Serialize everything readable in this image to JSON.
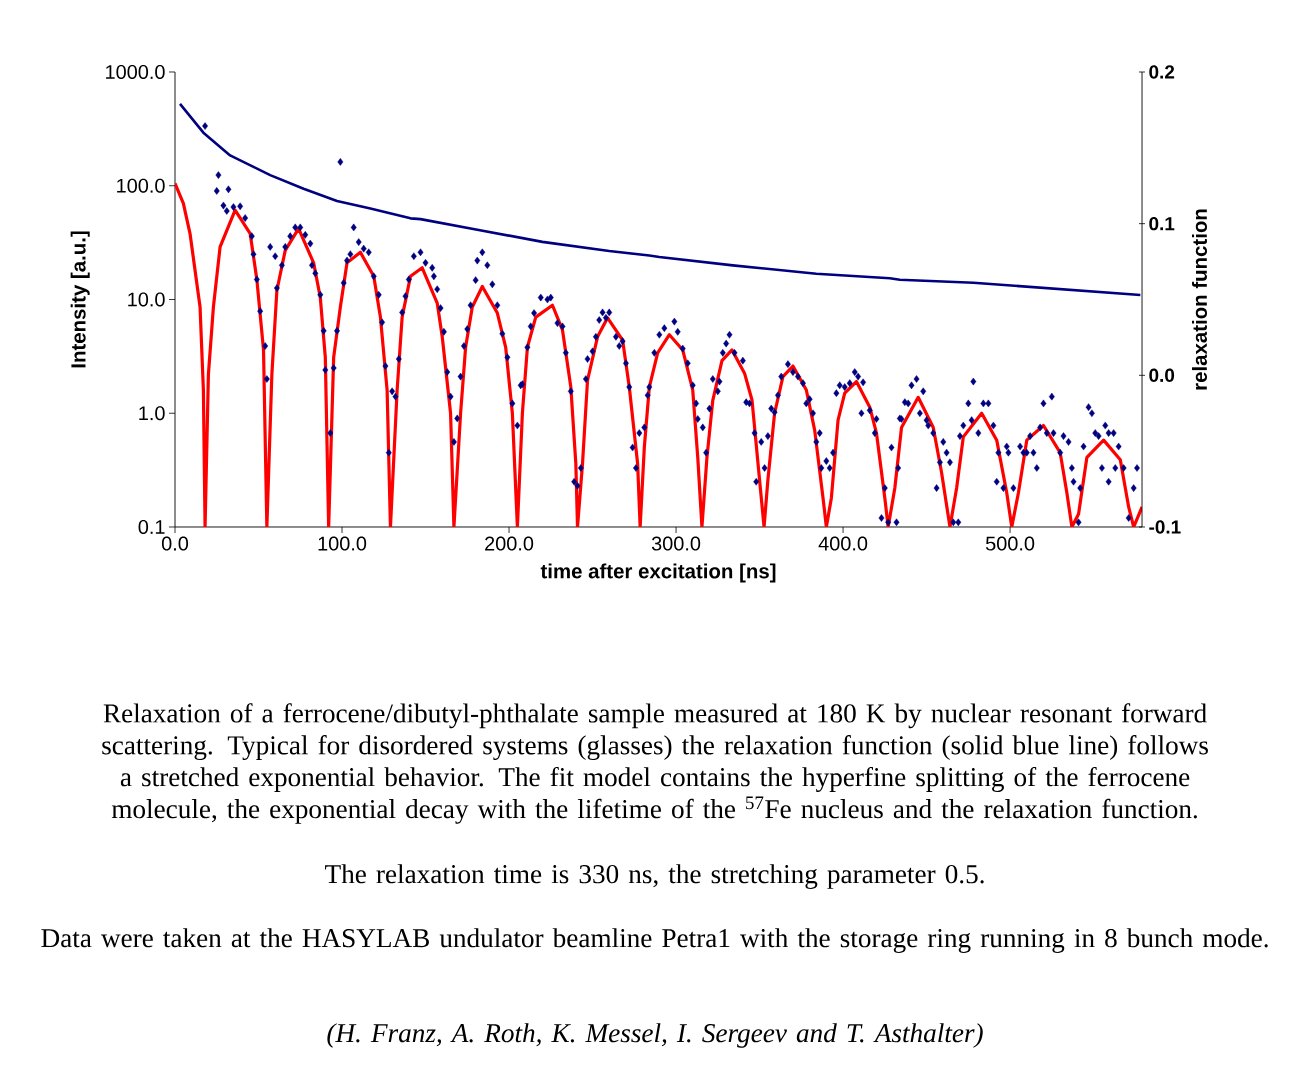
{
  "chart_data": {
    "type": "line",
    "xlabel": "time after excitation  [ns]",
    "ylabel": "Intensity  [a.u.]",
    "y2label": "relaxation function",
    "log": "y",
    "xlim": [
      0,
      579
    ],
    "xticks": [
      {
        "value": 0,
        "label": "0.0"
      },
      {
        "value": 100,
        "label": "100.0"
      },
      {
        "value": 200,
        "label": "200.0"
      },
      {
        "value": 300,
        "label": "300.0"
      },
      {
        "value": 400,
        "label": "400.0"
      },
      {
        "value": 500,
        "label": "500.0"
      }
    ],
    "ylim": [
      0.1,
      1000
    ],
    "yticks": [
      {
        "value": 0.1,
        "label": "0.1"
      },
      {
        "value": 1,
        "label": "1.0"
      },
      {
        "value": 10,
        "label": "10.0"
      },
      {
        "value": 100,
        "label": "100.0"
      },
      {
        "value": 1000,
        "label": "1000.0"
      }
    ],
    "y2lim": [
      -0.1,
      0.2
    ],
    "y2ticks": [
      {
        "value": -0.1,
        "label": "-0.1"
      },
      {
        "value": 0,
        "label": "0.0"
      },
      {
        "value": 0.1,
        "label": "0.1"
      },
      {
        "value": 0.2,
        "label": "0.2"
      }
    ],
    "series": [
      {
        "type": "scatter",
        "marker": "diamond",
        "color": "#000080",
        "x": [
          18,
          26,
          25,
          32,
          29,
          31,
          35,
          39,
          42,
          46,
          47,
          49,
          51,
          54,
          55,
          57,
          60,
          61,
          64,
          66,
          69,
          72,
          75,
          78,
          81,
          82,
          84,
          87,
          89,
          90,
          93,
          95,
          97,
          99,
          101,
          103,
          105,
          107,
          110,
          113,
          116,
          119,
          122,
          124,
          126,
          128,
          130,
          132,
          134,
          136,
          138,
          140,
          143,
          147,
          150,
          154,
          155,
          157,
          159,
          161,
          163,
          165,
          167,
          169,
          171,
          173,
          175,
          177,
          180,
          181,
          184,
          187,
          190,
          193,
          196,
          199,
          202,
          205,
          207,
          208,
          211,
          213,
          215,
          219,
          223,
          225,
          229,
          232,
          234,
          237,
          239,
          241,
          243,
          246,
          247,
          250,
          252,
          254,
          256,
          258,
          260,
          264,
          266,
          268,
          270,
          272,
          274,
          276,
          278,
          281,
          283,
          284,
          287,
          290,
          293,
          299,
          301,
          304,
          307,
          310,
          312,
          313,
          316,
          318,
          320,
          322,
          325,
          326,
          328,
          330,
          332,
          335,
          340,
          342,
          344,
          347,
          348,
          351,
          353,
          355,
          357,
          359,
          361,
          363,
          367,
          370,
          373,
          376,
          378,
          380,
          382,
          384,
          386,
          387,
          390,
          392,
          394,
          396,
          398,
          401,
          404,
          407,
          409,
          411,
          412,
          416,
          419,
          420,
          423,
          425,
          427,
          429,
          432,
          433,
          434,
          435,
          437,
          439,
          441,
          444,
          446,
          448,
          450,
          451,
          454,
          456,
          458,
          460,
          462,
          464,
          466,
          469,
          470,
          472,
          475,
          477,
          478,
          481,
          484,
          487,
          490,
          492,
          493,
          496,
          498,
          499,
          502,
          506,
          508,
          510,
          512,
          514,
          516,
          518,
          520,
          522,
          525,
          526,
          530,
          532,
          535,
          537,
          538,
          541,
          542,
          544,
          547,
          549,
          551,
          553,
          555,
          557,
          559,
          559,
          562,
          563,
          565,
          568,
          571,
          574,
          576
        ],
        "values": [
          335,
          124,
          90,
          93,
          67,
          60,
          65,
          66,
          52,
          36,
          25,
          15,
          7.9,
          3.9,
          2.0,
          29,
          24,
          12.6,
          20,
          29,
          36,
          43,
          43,
          37,
          31,
          20,
          17,
          11,
          5.3,
          2.4,
          0.67,
          2.5,
          5.3,
          162,
          14,
          22,
          25,
          43,
          32,
          28,
          26,
          16,
          11,
          6.3,
          2.6,
          0.45,
          1.56,
          1.4,
          3.0,
          7.7,
          10.7,
          15,
          24,
          26,
          21,
          19,
          16,
          12.3,
          8.4,
          5.2,
          2.3,
          1.4,
          0.56,
          0.9,
          2.1,
          3.9,
          5.5,
          8.9,
          14.8,
          22,
          26,
          20,
          13.6,
          8.9,
          5.0,
          3.1,
          1.22,
          0.78,
          1.76,
          1.8,
          3.8,
          5.8,
          7.6,
          10.4,
          10,
          10.4,
          6.2,
          5.8,
          3.4,
          1.56,
          0.25,
          0.23,
          0.33,
          2.0,
          3.0,
          3.5,
          4.7,
          6.6,
          7.7,
          6.9,
          7.7,
          4.7,
          3.9,
          4.3,
          2.75,
          1.7,
          0.5,
          0.33,
          0.67,
          0.75,
          1.44,
          1.7,
          3.4,
          4.9,
          5.6,
          6.4,
          5.2,
          3.7,
          2.75,
          1.76,
          1.22,
          0.89,
          0.75,
          0.45,
          1.1,
          2.0,
          1.56,
          1.9,
          3.4,
          4.1,
          4.9,
          3.4,
          2.9,
          1.25,
          1.22,
          0.67,
          0.25,
          0.56,
          0.33,
          0.63,
          1.1,
          1.02,
          1.44,
          2.1,
          2.7,
          2.3,
          2.1,
          1.84,
          1.22,
          1.33,
          1.0,
          0.56,
          0.67,
          0.33,
          0.38,
          0.33,
          0.45,
          1.5,
          1.76,
          1.7,
          1.84,
          2.3,
          2.1,
          1.0,
          1.87,
          1.06,
          0.67,
          0.89,
          0.12,
          0.22,
          0.11,
          0.5,
          0.11,
          0.33,
          0.9,
          0.89,
          1.25,
          1.22,
          1.76,
          2.0,
          1.0,
          1.56,
          0.87,
          0.78,
          0.67,
          0.22,
          0.37,
          0.56,
          0.45,
          0.37,
          0.11,
          0.11,
          0.63,
          0.78,
          1.22,
          0.87,
          1.9,
          0.67,
          1.22,
          1.22,
          0.78,
          0.25,
          0.45,
          0.22,
          0.51,
          0.45,
          0.22,
          0.51,
          0.45,
          0.45,
          0.63,
          0.45,
          0.33,
          0.75,
          1.22,
          0.67,
          1.4,
          0.67,
          0.45,
          0.63,
          0.56,
          0.33,
          0.25,
          0.11,
          0.22,
          0.51,
          1.13,
          1.0,
          0.67,
          0.63,
          0.33,
          0.78,
          0.67,
          0.25,
          0.67,
          0.33,
          0.51,
          0.33,
          0.12,
          0.22,
          0.33
        ]
      },
      {
        "color": "#ff0000",
        "x": [
          0,
          5,
          9,
          15,
          17,
          18,
          20,
          23,
          27,
          36,
          45,
          49,
          53,
          55,
          58,
          61,
          66,
          74,
          83,
          87,
          90,
          92,
          95,
          99,
          103,
          111,
          119,
          123,
          127,
          129,
          133,
          136,
          141,
          148,
          157,
          160,
          165,
          167,
          171,
          174,
          178,
          184,
          193,
          198,
          202,
          205,
          208,
          211,
          216,
          226,
          232,
          237,
          240,
          241,
          244,
          247,
          253,
          259,
          268,
          272,
          277,
          278.5,
          281,
          284,
          289,
          296,
          304,
          310,
          313,
          315.5,
          318.5,
          322,
          327.5,
          333.5,
          341,
          345.5,
          350,
          352.7,
          355,
          359,
          364,
          370,
          378,
          383,
          388,
          390,
          393,
          397,
          401,
          408,
          416,
          420,
          425,
          427,
          431,
          435,
          445,
          454,
          459,
          464,
          468,
          472,
          483,
          492,
          498,
          501,
          505,
          510,
          520,
          530,
          534,
          537,
          541,
          546,
          556,
          566,
          571,
          574,
          579
        ],
        "values": [
          105,
          70,
          38,
          8.6,
          1.6,
          0.1,
          2.2,
          8.6,
          29,
          61,
          38,
          15,
          3.6,
          0.1,
          2.2,
          12,
          27,
          42,
          21,
          10.4,
          3.1,
          0.1,
          3.1,
          8.6,
          21,
          26,
          16,
          7,
          1.6,
          0.1,
          1.6,
          7,
          16,
          19,
          9.3,
          4.7,
          1.0,
          0.1,
          1.0,
          3.8,
          8.6,
          13,
          7.6,
          3.8,
          1.0,
          0.1,
          1.0,
          3.8,
          7,
          8.9,
          5.4,
          1.7,
          0.36,
          0.1,
          0.36,
          1.95,
          4.7,
          6.9,
          4.4,
          1.7,
          0.36,
          0.1,
          0.5,
          1.7,
          3.4,
          4.9,
          3.6,
          1.6,
          0.41,
          0.1,
          0.41,
          1.3,
          2.9,
          3.6,
          2.25,
          1.3,
          0.26,
          0.1,
          0.26,
          1.0,
          2.1,
          2.6,
          1.6,
          0.71,
          0.18,
          0.1,
          0.18,
          0.87,
          1.5,
          1.9,
          1.13,
          0.67,
          0.18,
          0.1,
          0.22,
          0.75,
          1.38,
          0.75,
          0.3,
          0.1,
          0.22,
          0.62,
          1.0,
          0.58,
          0.2,
          0.1,
          0.2,
          0.58,
          0.78,
          0.45,
          0.2,
          0.1,
          0.13,
          0.41,
          0.58,
          0.39,
          0.15,
          0.1,
          0.15
        ]
      },
      {
        "axis": "y2",
        "color": "#000080",
        "x": [
          3,
          17,
          33,
          57,
          77,
          97,
          117,
          141,
          147,
          181,
          220,
          260,
          284,
          290,
          334,
          384,
          428,
          434,
          478,
          528,
          578
        ],
        "values": [
          0.179,
          0.16,
          0.145,
          0.132,
          0.123,
          0.115,
          0.11,
          0.1035,
          0.103,
          0.096,
          0.088,
          0.082,
          0.079,
          0.078,
          0.0725,
          0.067,
          0.064,
          0.063,
          0.061,
          0.057,
          0.053
        ]
      }
    ],
    "annotations": [
      "Relaxation of a ferrocene/dibutyl-phthalate sample measured at 180 K by nuclear resonant forward scattering. Typical for disordered systems (glasses) the relaxation function (solid blue line) follows a stretched exponential behavior. The fit model contains the hyperfine splitting of the ferrocene molecule, the exponential decay with the lifetime of the $^{57}$Fe nucleus and the relaxation function.",
      "The relaxation time is 330 ns, the stretching parameter 0.5.",
      "Data were taken at the HASYLAB undulator beamline Petra1 with the storage ring running in 8 bunch mode.",
      "(H. Franz, A. Roth, K. Messel, I. Sergeev and T. Asthalter)"
    ]
  }
}
